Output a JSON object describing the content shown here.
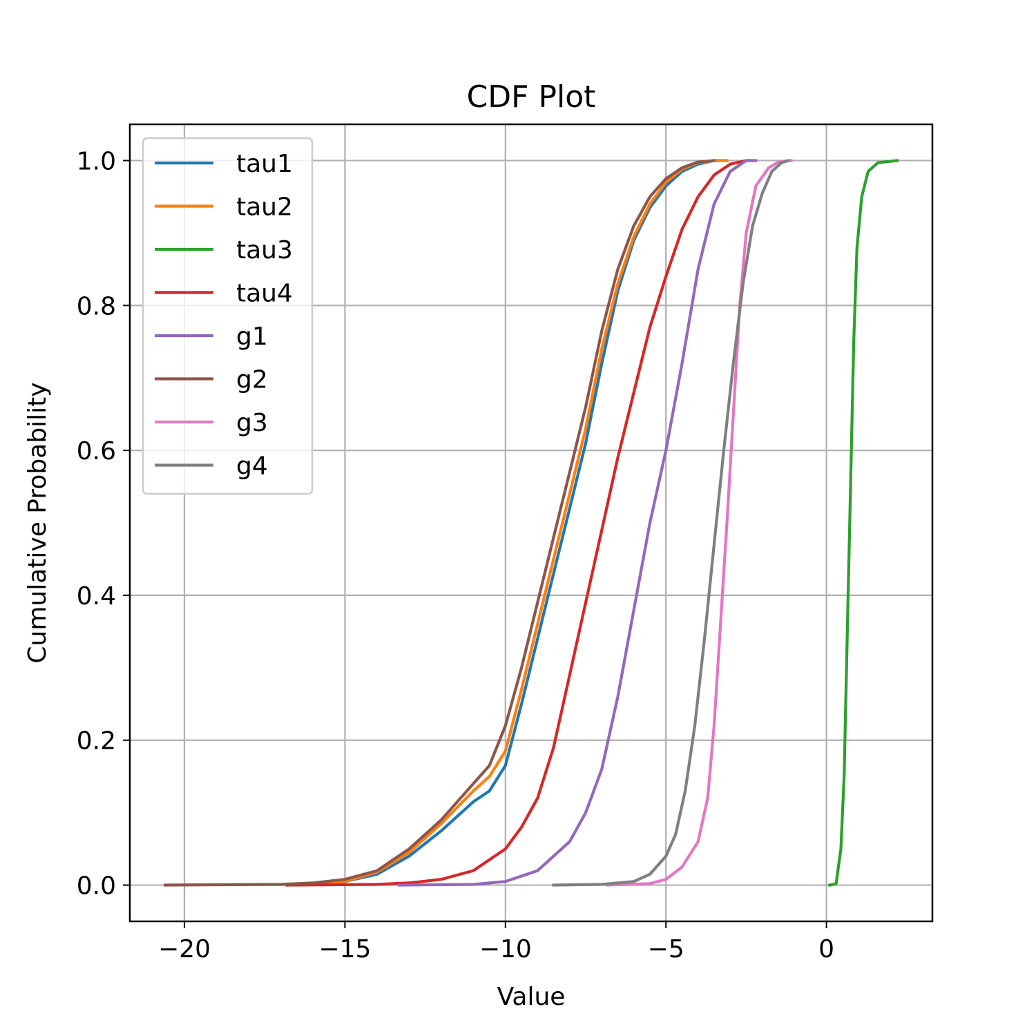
{
  "chart_data": {
    "type": "line",
    "title": "CDF Plot",
    "xlabel": "Value",
    "ylabel": "Cumulative Probability",
    "xlim": [
      -21.7,
      3.3
    ],
    "ylim": [
      -0.05,
      1.05
    ],
    "xticks": [
      -20,
      -15,
      -10,
      -5,
      0
    ],
    "xtick_labels": [
      "−20",
      "−15",
      "−10",
      "−5",
      "0"
    ],
    "yticks": [
      0.0,
      0.2,
      0.4,
      0.6,
      0.8,
      1.0
    ],
    "ytick_labels": [
      "0.0",
      "0.2",
      "0.4",
      "0.6",
      "0.8",
      "1.0"
    ],
    "grid": true,
    "legend_position": "top-left",
    "series": [
      {
        "name": "tau1",
        "color": "#1f77b4",
        "points": [
          [
            -16.8,
            0.0
          ],
          [
            -15.0,
            0.005
          ],
          [
            -14.0,
            0.015
          ],
          [
            -13.0,
            0.04
          ],
          [
            -12.0,
            0.075
          ],
          [
            -11.0,
            0.115
          ],
          [
            -10.5,
            0.13
          ],
          [
            -10.0,
            0.165
          ],
          [
            -9.5,
            0.25
          ],
          [
            -9.0,
            0.34
          ],
          [
            -8.5,
            0.43
          ],
          [
            -8.0,
            0.52
          ],
          [
            -7.5,
            0.61
          ],
          [
            -7.0,
            0.72
          ],
          [
            -6.5,
            0.82
          ],
          [
            -6.0,
            0.89
          ],
          [
            -5.5,
            0.935
          ],
          [
            -5.0,
            0.965
          ],
          [
            -4.5,
            0.985
          ],
          [
            -4.0,
            0.995
          ],
          [
            -3.5,
            1.0
          ],
          [
            -3.2,
            1.0
          ]
        ]
      },
      {
        "name": "tau2",
        "color": "#ff7f0e",
        "points": [
          [
            -16.5,
            0.0
          ],
          [
            -15.0,
            0.005
          ],
          [
            -14.0,
            0.018
          ],
          [
            -13.0,
            0.045
          ],
          [
            -12.0,
            0.085
          ],
          [
            -11.0,
            0.13
          ],
          [
            -10.5,
            0.15
          ],
          [
            -10.0,
            0.185
          ],
          [
            -9.5,
            0.27
          ],
          [
            -9.0,
            0.36
          ],
          [
            -8.5,
            0.45
          ],
          [
            -8.0,
            0.54
          ],
          [
            -7.5,
            0.63
          ],
          [
            -7.0,
            0.74
          ],
          [
            -6.5,
            0.83
          ],
          [
            -6.0,
            0.895
          ],
          [
            -5.5,
            0.94
          ],
          [
            -5.0,
            0.97
          ],
          [
            -4.5,
            0.988
          ],
          [
            -4.0,
            0.997
          ],
          [
            -3.5,
            1.0
          ],
          [
            -3.1,
            1.0
          ]
        ]
      },
      {
        "name": "tau3",
        "color": "#2ca02c",
        "points": [
          [
            0.1,
            0.0
          ],
          [
            0.3,
            0.002
          ],
          [
            0.45,
            0.05
          ],
          [
            0.55,
            0.15
          ],
          [
            0.65,
            0.35
          ],
          [
            0.75,
            0.55
          ],
          [
            0.85,
            0.75
          ],
          [
            0.95,
            0.88
          ],
          [
            1.1,
            0.95
          ],
          [
            1.3,
            0.985
          ],
          [
            1.6,
            0.997
          ],
          [
            2.2,
            1.0
          ]
        ]
      },
      {
        "name": "tau4",
        "color": "#d62728",
        "points": [
          [
            -16.8,
            0.0
          ],
          [
            -14.0,
            0.001
          ],
          [
            -13.0,
            0.003
          ],
          [
            -12.0,
            0.008
          ],
          [
            -11.0,
            0.02
          ],
          [
            -10.0,
            0.05
          ],
          [
            -9.5,
            0.08
          ],
          [
            -9.0,
            0.12
          ],
          [
            -8.5,
            0.19
          ],
          [
            -8.0,
            0.29
          ],
          [
            -7.5,
            0.39
          ],
          [
            -7.0,
            0.49
          ],
          [
            -6.5,
            0.59
          ],
          [
            -6.0,
            0.68
          ],
          [
            -5.5,
            0.77
          ],
          [
            -5.0,
            0.84
          ],
          [
            -4.5,
            0.905
          ],
          [
            -4.0,
            0.95
          ],
          [
            -3.5,
            0.98
          ],
          [
            -3.0,
            0.995
          ],
          [
            -2.5,
            1.0
          ],
          [
            -2.3,
            1.0
          ]
        ]
      },
      {
        "name": "g1",
        "color": "#9467bd",
        "points": [
          [
            -13.3,
            0.0
          ],
          [
            -11.0,
            0.001
          ],
          [
            -10.0,
            0.005
          ],
          [
            -9.0,
            0.02
          ],
          [
            -8.0,
            0.06
          ],
          [
            -7.5,
            0.1
          ],
          [
            -7.0,
            0.16
          ],
          [
            -6.5,
            0.26
          ],
          [
            -6.0,
            0.38
          ],
          [
            -5.5,
            0.5
          ],
          [
            -5.0,
            0.6
          ],
          [
            -4.5,
            0.72
          ],
          [
            -4.0,
            0.85
          ],
          [
            -3.5,
            0.94
          ],
          [
            -3.0,
            0.985
          ],
          [
            -2.5,
            1.0
          ],
          [
            -2.2,
            1.0
          ]
        ]
      },
      {
        "name": "g2",
        "color": "#8c564b",
        "points": [
          [
            -20.6,
            0.0
          ],
          [
            -17.0,
            0.001
          ],
          [
            -16.0,
            0.003
          ],
          [
            -15.0,
            0.008
          ],
          [
            -14.0,
            0.02
          ],
          [
            -13.0,
            0.05
          ],
          [
            -12.0,
            0.09
          ],
          [
            -11.0,
            0.14
          ],
          [
            -10.5,
            0.165
          ],
          [
            -10.0,
            0.22
          ],
          [
            -9.5,
            0.3
          ],
          [
            -9.0,
            0.39
          ],
          [
            -8.5,
            0.48
          ],
          [
            -8.0,
            0.57
          ],
          [
            -7.5,
            0.66
          ],
          [
            -7.0,
            0.765
          ],
          [
            -6.5,
            0.85
          ],
          [
            -6.0,
            0.91
          ],
          [
            -5.5,
            0.95
          ],
          [
            -5.0,
            0.975
          ],
          [
            -4.5,
            0.99
          ],
          [
            -4.0,
            0.998
          ],
          [
            -3.5,
            1.0
          ]
        ]
      },
      {
        "name": "g3",
        "color": "#e377c2",
        "points": [
          [
            -6.8,
            0.0
          ],
          [
            -5.5,
            0.002
          ],
          [
            -5.0,
            0.008
          ],
          [
            -4.5,
            0.025
          ],
          [
            -4.0,
            0.06
          ],
          [
            -3.7,
            0.12
          ],
          [
            -3.5,
            0.22
          ],
          [
            -3.3,
            0.36
          ],
          [
            -3.1,
            0.5
          ],
          [
            -2.9,
            0.65
          ],
          [
            -2.7,
            0.8
          ],
          [
            -2.5,
            0.9
          ],
          [
            -2.2,
            0.965
          ],
          [
            -1.8,
            0.99
          ],
          [
            -1.5,
            0.998
          ],
          [
            -1.1,
            1.0
          ]
        ]
      },
      {
        "name": "g4",
        "color": "#7f7f7f",
        "points": [
          [
            -8.5,
            0.0
          ],
          [
            -7.0,
            0.001
          ],
          [
            -6.0,
            0.005
          ],
          [
            -5.5,
            0.015
          ],
          [
            -5.0,
            0.04
          ],
          [
            -4.7,
            0.07
          ],
          [
            -4.4,
            0.13
          ],
          [
            -4.1,
            0.22
          ],
          [
            -3.8,
            0.34
          ],
          [
            -3.5,
            0.47
          ],
          [
            -3.2,
            0.6
          ],
          [
            -2.9,
            0.72
          ],
          [
            -2.6,
            0.83
          ],
          [
            -2.3,
            0.91
          ],
          [
            -2.0,
            0.955
          ],
          [
            -1.7,
            0.985
          ],
          [
            -1.4,
            0.997
          ],
          [
            -1.2,
            1.0
          ]
        ]
      }
    ]
  }
}
